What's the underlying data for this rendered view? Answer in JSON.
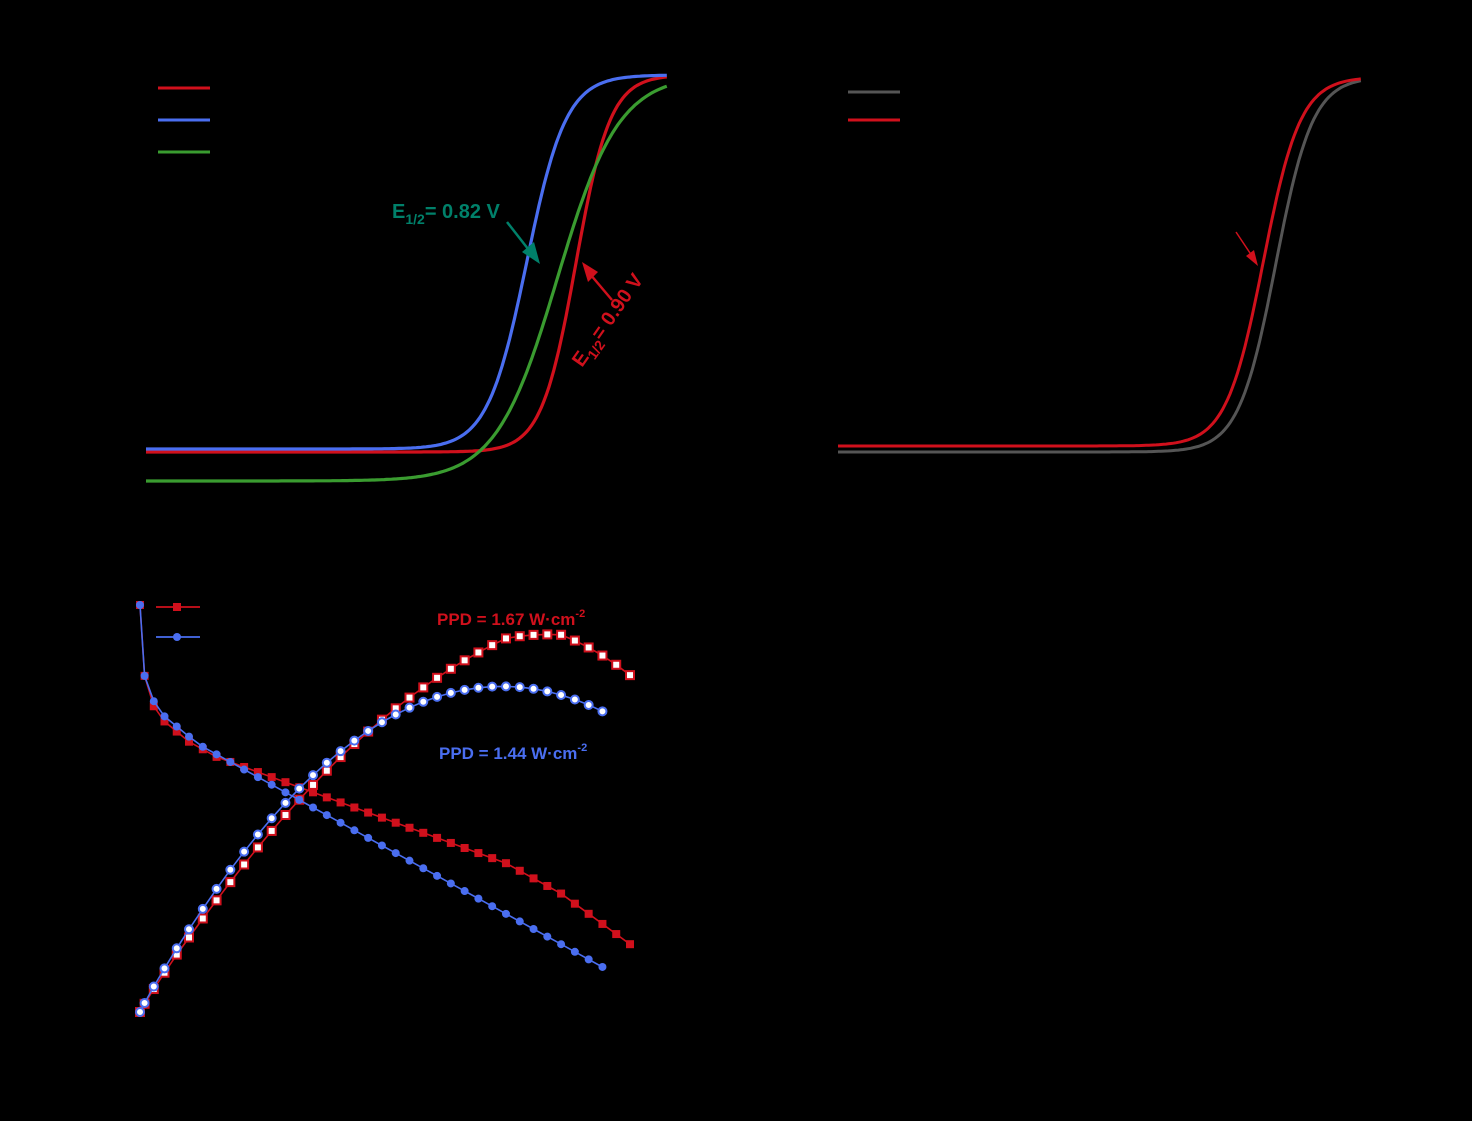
{
  "colors": {
    "background": "#000000",
    "red": "#d0101c",
    "blue": "#4a6ef0",
    "green": "#3a9c30",
    "gray": "#555555",
    "teal": "#00806a"
  },
  "chart_data": [
    {
      "type": "line",
      "panel": "top-left",
      "series": [
        {
          "color": "#d0101c",
          "e_half": 0.9
        },
        {
          "color": "#4a6ef0",
          "e_half": 0.82
        },
        {
          "color": "#3a9c30",
          "e_half": 0.87
        }
      ],
      "annotations": [
        {
          "text_main": "E",
          "text_sub": "1/2",
          "text_value": "= 0.82 V",
          "color": "#00806a"
        },
        {
          "text_main": "E",
          "text_sub": "1/2",
          "text_value": "= 0.90 V",
          "color": "#d0101c"
        }
      ]
    },
    {
      "type": "line",
      "panel": "top-right",
      "series": [
        {
          "color": "#555555",
          "e_half": 0.91
        },
        {
          "color": "#d0101c",
          "e_half": 0.89
        }
      ]
    },
    {
      "type": "scatter",
      "panel": "bottom-left",
      "series": [
        {
          "color": "#d0101c",
          "marker": "square",
          "polarization": [
            [
              0.0,
              1.0
            ],
            [
              0.03,
              0.86
            ],
            [
              0.09,
              0.8
            ],
            [
              0.16,
              0.77
            ],
            [
              0.24,
              0.75
            ],
            [
              0.32,
              0.73
            ],
            [
              0.41,
              0.715
            ],
            [
              0.5,
              0.7
            ],
            [
              0.59,
              0.69
            ],
            [
              0.68,
              0.68
            ],
            [
              0.77,
              0.67
            ],
            [
              0.86,
              0.66
            ],
            [
              0.95,
              0.65
            ],
            [
              1.04,
              0.64
            ],
            [
              1.13,
              0.63
            ],
            [
              1.22,
              0.62
            ],
            [
              1.31,
              0.61
            ],
            [
              1.4,
              0.6
            ],
            [
              1.49,
              0.59
            ],
            [
              1.58,
              0.58
            ],
            [
              1.67,
              0.57
            ],
            [
              1.76,
              0.56
            ],
            [
              1.85,
              0.55
            ],
            [
              1.94,
              0.54
            ],
            [
              2.03,
              0.53
            ],
            [
              2.12,
              0.52
            ],
            [
              2.21,
              0.51
            ],
            [
              2.3,
              0.5
            ],
            [
              2.39,
              0.49
            ],
            [
              2.48,
              0.475
            ],
            [
              2.57,
              0.46
            ],
            [
              2.66,
              0.445
            ],
            [
              2.75,
              0.43
            ],
            [
              2.84,
              0.41
            ],
            [
              2.93,
              0.39
            ],
            [
              3.02,
              0.37
            ],
            [
              3.11,
              0.35
            ],
            [
              3.2,
              0.33
            ]
          ],
          "ppd": 1.67
        },
        {
          "color": "#4a6ef0",
          "marker": "circle",
          "polarization": [
            [
              0.0,
              1.0
            ],
            [
              0.03,
              0.86
            ],
            [
              0.09,
              0.81
            ],
            [
              0.16,
              0.78
            ],
            [
              0.24,
              0.76
            ],
            [
              0.32,
              0.74
            ],
            [
              0.41,
              0.72
            ],
            [
              0.5,
              0.705
            ],
            [
              0.59,
              0.69
            ],
            [
              0.68,
              0.675
            ],
            [
              0.77,
              0.66
            ],
            [
              0.86,
              0.645
            ],
            [
              0.95,
              0.63
            ],
            [
              1.04,
              0.615
            ],
            [
              1.13,
              0.6
            ],
            [
              1.22,
              0.585
            ],
            [
              1.31,
              0.57
            ],
            [
              1.4,
              0.555
            ],
            [
              1.49,
              0.54
            ],
            [
              1.58,
              0.525
            ],
            [
              1.67,
              0.51
            ],
            [
              1.76,
              0.495
            ],
            [
              1.85,
              0.48
            ],
            [
              1.94,
              0.465
            ],
            [
              2.03,
              0.45
            ],
            [
              2.12,
              0.435
            ],
            [
              2.21,
              0.42
            ],
            [
              2.3,
              0.405
            ],
            [
              2.39,
              0.39
            ],
            [
              2.48,
              0.375
            ],
            [
              2.57,
              0.36
            ],
            [
              2.66,
              0.345
            ],
            [
              2.75,
              0.33
            ],
            [
              2.84,
              0.315
            ],
            [
              2.93,
              0.3
            ],
            [
              3.02,
              0.285
            ]
          ],
          "ppd": 1.44
        }
      ],
      "annotations": [
        {
          "text": "PPD = 1.67 W·cm",
          "sup": "-2",
          "color": "#d0101c"
        },
        {
          "text": "PPD = 1.44 W·cm",
          "sup": "-2",
          "color": "#4a6ef0"
        }
      ]
    }
  ]
}
